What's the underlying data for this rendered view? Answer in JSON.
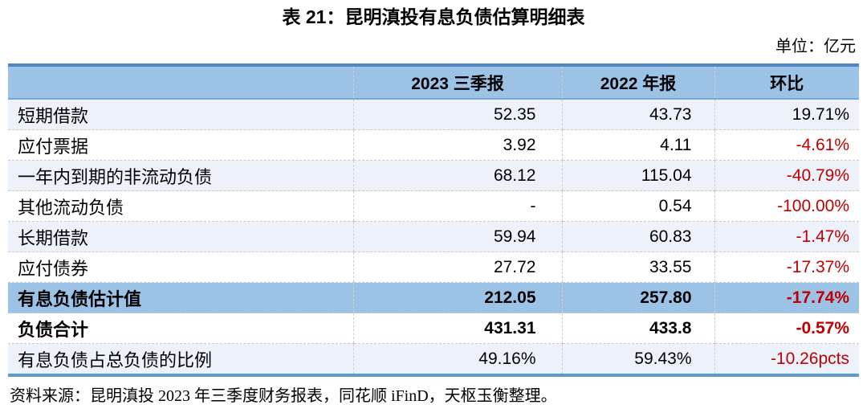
{
  "page": {
    "title": "表 21：昆明滇投有息负债估算明细表",
    "unit_label": "单位：亿元",
    "source": "资料来源：昆明滇投 2023 年三季度财务报表，同花顺 iFinD，天枢玉衡整理。"
  },
  "table": {
    "columns": [
      "",
      "2023 三季报",
      "2022 年报",
      "环比"
    ],
    "rows": [
      {
        "label": "短期借款",
        "v2023": "52.35",
        "v2022": "43.73",
        "change": "19.71%",
        "change_red": false,
        "bold": false,
        "style": "band"
      },
      {
        "label": "应付票据",
        "v2023": "3.92",
        "v2022": "4.11",
        "change": "-4.61%",
        "change_red": true,
        "bold": false,
        "style": "white"
      },
      {
        "label": "一年内到期的非流动负债",
        "v2023": "68.12",
        "v2022": "115.04",
        "change": "-40.79%",
        "change_red": true,
        "bold": false,
        "style": "band"
      },
      {
        "label": "其他流动负债",
        "v2023": "-",
        "v2022": "0.54",
        "change": "-100.00%",
        "change_red": true,
        "bold": false,
        "style": "white"
      },
      {
        "label": "长期借款",
        "v2023": "59.94",
        "v2022": "60.83",
        "change": "-1.47%",
        "change_red": true,
        "bold": false,
        "style": "band"
      },
      {
        "label": "应付债券",
        "v2023": "27.72",
        "v2022": "33.55",
        "change": "-17.37%",
        "change_red": true,
        "bold": false,
        "style": "white"
      },
      {
        "label": "有息负债估计值",
        "v2023": "212.05",
        "v2022": "257.80",
        "change": "-17.74%",
        "change_red": true,
        "bold": true,
        "style": "highlight"
      },
      {
        "label": "负债合计",
        "v2023": "431.31",
        "v2022": "433.8",
        "change": "-0.57%",
        "change_red": true,
        "bold": true,
        "style": "white"
      },
      {
        "label": "有息负债占总负债的比例",
        "v2023": "49.16%",
        "v2022": "59.43%",
        "change": "-10.26pcts",
        "change_red": true,
        "bold": false,
        "style": "band"
      }
    ]
  },
  "colors": {
    "header_bg": "#9cc3e6",
    "highlight_row_bg": "#9cc3e6",
    "band_row_bg": "#edf2fa",
    "table_top_border": "#4e86c4",
    "table_bottom_border": "#5b9bd5",
    "negative_red": "#c00000"
  }
}
